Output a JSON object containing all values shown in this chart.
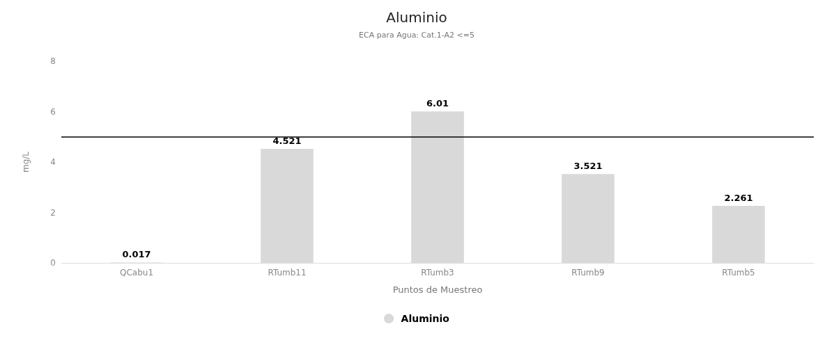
{
  "chart_data": {
    "type": "bar",
    "title": "Aluminio",
    "subtitle": "ECA para Agua: Cat.1-A2 <=5",
    "xlabel": "Puntos de Muestreo",
    "ylabel": "mg/L",
    "categories": [
      "QCabu1",
      "RTumb11",
      "RTumb3",
      "RTumb9",
      "RTumb5"
    ],
    "series": [
      {
        "name": "Aluminio",
        "color": "#d9d9d9",
        "values": [
          0.017,
          4.521,
          6.01,
          3.521,
          2.261
        ]
      }
    ],
    "ylim": [
      0,
      8
    ],
    "yticks": [
      0,
      2,
      4,
      6,
      8
    ],
    "grid": false,
    "legend": "bottom",
    "data_labels": true,
    "ref_lines": [
      {
        "axis": "y",
        "value": 5,
        "color": "#000000",
        "line_style": "solid"
      }
    ]
  }
}
